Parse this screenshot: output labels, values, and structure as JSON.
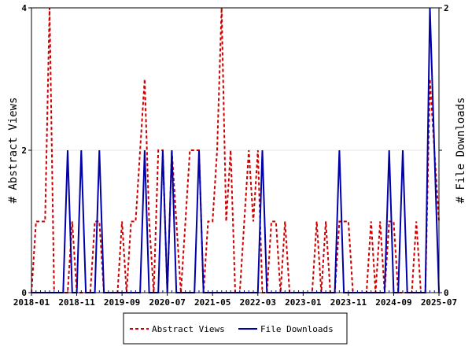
{
  "chart_data": {
    "type": "line",
    "ylabel_left": "# Abstract Views",
    "ylabel_right": "# File Downloads",
    "x_tick_labels": [
      "2018-01",
      "2018-11",
      "2019-09",
      "2020-07",
      "2021-05",
      "2022-03",
      "2023-01",
      "2023-11",
      "2024-09",
      "2025-07"
    ],
    "x_range": [
      "2018-01",
      "2025-07"
    ],
    "ylim_left": [
      0,
      4
    ],
    "yticks_left": [
      0,
      2,
      4
    ],
    "ylim_right": [
      0,
      2
    ],
    "yticks_right": [
      0,
      1,
      2
    ],
    "legend_position": "bottom-center",
    "series": [
      {
        "name": "Abstract Views",
        "color": "#cc0000",
        "style": "dashed",
        "axis": "left",
        "points": [
          [
            "2018-01",
            0
          ],
          [
            "2018-02",
            1
          ],
          [
            "2018-03",
            1
          ],
          [
            "2018-04",
            1
          ],
          [
            "2018-05",
            4
          ],
          [
            "2018-06",
            0
          ],
          [
            "2018-07",
            0
          ],
          [
            "2018-08",
            0
          ],
          [
            "2018-09",
            0
          ],
          [
            "2018-10",
            1
          ],
          [
            "2018-11",
            0
          ],
          [
            "2018-12",
            0
          ],
          [
            "2019-01",
            0
          ],
          [
            "2019-02",
            0
          ],
          [
            "2019-03",
            1
          ],
          [
            "2019-04",
            1
          ],
          [
            "2019-05",
            0
          ],
          [
            "2019-06",
            0
          ],
          [
            "2019-07",
            0
          ],
          [
            "2019-08",
            0
          ],
          [
            "2019-09",
            1
          ],
          [
            "2019-10",
            0
          ],
          [
            "2019-11",
            1
          ],
          [
            "2019-12",
            1
          ],
          [
            "2020-01",
            2
          ],
          [
            "2020-02",
            3
          ],
          [
            "2020-03",
            1
          ],
          [
            "2020-04",
            0
          ],
          [
            "2020-05",
            2
          ],
          [
            "2020-06",
            2
          ],
          [
            "2020-07",
            0
          ],
          [
            "2020-08",
            2
          ],
          [
            "2020-09",
            1
          ],
          [
            "2020-10",
            0
          ],
          [
            "2020-11",
            1
          ],
          [
            "2020-12",
            2
          ],
          [
            "2021-01",
            2
          ],
          [
            "2021-02",
            2
          ],
          [
            "2021-03",
            0
          ],
          [
            "2021-04",
            1
          ],
          [
            "2021-05",
            1
          ],
          [
            "2021-06",
            2
          ],
          [
            "2021-07",
            4
          ],
          [
            "2021-08",
            1
          ],
          [
            "2021-09",
            2
          ],
          [
            "2021-10",
            0
          ],
          [
            "2021-11",
            0
          ],
          [
            "2021-12",
            1
          ],
          [
            "2022-01",
            2
          ],
          [
            "2022-02",
            1
          ],
          [
            "2022-03",
            2
          ],
          [
            "2022-04",
            0
          ],
          [
            "2022-05",
            0
          ],
          [
            "2022-06",
            1
          ],
          [
            "2022-07",
            1
          ],
          [
            "2022-08",
            0
          ],
          [
            "2022-09",
            1
          ],
          [
            "2022-10",
            0
          ],
          [
            "2022-11",
            0
          ],
          [
            "2022-12",
            0
          ],
          [
            "2023-01",
            0
          ],
          [
            "2023-02",
            0
          ],
          [
            "2023-03",
            0
          ],
          [
            "2023-04",
            1
          ],
          [
            "2023-05",
            0
          ],
          [
            "2023-06",
            1
          ],
          [
            "2023-07",
            0
          ],
          [
            "2023-08",
            0
          ],
          [
            "2023-09",
            1
          ],
          [
            "2023-10",
            1
          ],
          [
            "2023-11",
            1
          ],
          [
            "2023-12",
            0
          ],
          [
            "2024-01",
            0
          ],
          [
            "2024-02",
            0
          ],
          [
            "2024-03",
            0
          ],
          [
            "2024-04",
            1
          ],
          [
            "2024-05",
            0
          ],
          [
            "2024-06",
            1
          ],
          [
            "2024-07",
            0
          ],
          [
            "2024-08",
            1
          ],
          [
            "2024-09",
            1
          ],
          [
            "2024-10",
            0
          ],
          [
            "2024-11",
            0
          ],
          [
            "2024-12",
            0
          ],
          [
            "2025-01",
            0
          ],
          [
            "2025-02",
            1
          ],
          [
            "2025-03",
            0
          ],
          [
            "2025-04",
            0
          ],
          [
            "2025-05",
            3
          ],
          [
            "2025-06",
            2
          ],
          [
            "2025-07",
            1
          ]
        ]
      },
      {
        "name": "File Downloads",
        "color": "#0000aa",
        "style": "solid",
        "axis": "right",
        "points": [
          [
            "2018-01",
            0
          ],
          [
            "2018-02",
            0
          ],
          [
            "2018-03",
            0
          ],
          [
            "2018-04",
            0
          ],
          [
            "2018-05",
            0
          ],
          [
            "2018-06",
            0
          ],
          [
            "2018-07",
            0
          ],
          [
            "2018-08",
            0
          ],
          [
            "2018-09",
            1
          ],
          [
            "2018-10",
            0
          ],
          [
            "2018-11",
            0
          ],
          [
            "2018-12",
            1
          ],
          [
            "2019-01",
            0
          ],
          [
            "2019-02",
            0
          ],
          [
            "2019-03",
            0
          ],
          [
            "2019-04",
            1
          ],
          [
            "2019-05",
            0
          ],
          [
            "2019-06",
            0
          ],
          [
            "2019-07",
            0
          ],
          [
            "2019-08",
            0
          ],
          [
            "2019-09",
            0
          ],
          [
            "2019-10",
            0
          ],
          [
            "2019-11",
            0
          ],
          [
            "2019-12",
            0
          ],
          [
            "2020-01",
            0
          ],
          [
            "2020-02",
            1
          ],
          [
            "2020-03",
            0
          ],
          [
            "2020-04",
            0
          ],
          [
            "2020-05",
            0
          ],
          [
            "2020-06",
            1
          ],
          [
            "2020-07",
            0
          ],
          [
            "2020-08",
            1
          ],
          [
            "2020-09",
            0
          ],
          [
            "2020-10",
            0
          ],
          [
            "2020-11",
            0
          ],
          [
            "2020-12",
            0
          ],
          [
            "2021-01",
            0
          ],
          [
            "2021-02",
            1
          ],
          [
            "2021-03",
            0
          ],
          [
            "2021-04",
            0
          ],
          [
            "2021-05",
            0
          ],
          [
            "2021-06",
            0
          ],
          [
            "2021-07",
            0
          ],
          [
            "2021-08",
            0
          ],
          [
            "2021-09",
            0
          ],
          [
            "2021-10",
            0
          ],
          [
            "2021-11",
            0
          ],
          [
            "2021-12",
            0
          ],
          [
            "2022-01",
            0
          ],
          [
            "2022-02",
            0
          ],
          [
            "2022-03",
            0
          ],
          [
            "2022-04",
            1
          ],
          [
            "2022-05",
            0
          ],
          [
            "2022-06",
            0
          ],
          [
            "2022-07",
            0
          ],
          [
            "2022-08",
            0
          ],
          [
            "2022-09",
            0
          ],
          [
            "2022-10",
            0
          ],
          [
            "2022-11",
            0
          ],
          [
            "2022-12",
            0
          ],
          [
            "2023-01",
            0
          ],
          [
            "2023-02",
            0
          ],
          [
            "2023-03",
            0
          ],
          [
            "2023-04",
            0
          ],
          [
            "2023-05",
            0
          ],
          [
            "2023-06",
            0
          ],
          [
            "2023-07",
            0
          ],
          [
            "2023-08",
            0
          ],
          [
            "2023-09",
            1
          ],
          [
            "2023-10",
            0
          ],
          [
            "2023-11",
            0
          ],
          [
            "2023-12",
            0
          ],
          [
            "2024-01",
            0
          ],
          [
            "2024-02",
            0
          ],
          [
            "2024-03",
            0
          ],
          [
            "2024-04",
            0
          ],
          [
            "2024-05",
            0
          ],
          [
            "2024-06",
            0
          ],
          [
            "2024-07",
            0
          ],
          [
            "2024-08",
            1
          ],
          [
            "2024-09",
            0
          ],
          [
            "2024-10",
            0
          ],
          [
            "2024-11",
            1
          ],
          [
            "2024-12",
            0
          ],
          [
            "2025-01",
            0
          ],
          [
            "2025-02",
            0
          ],
          [
            "2025-03",
            0
          ],
          [
            "2025-04",
            0
          ],
          [
            "2025-05",
            2
          ],
          [
            "2025-06",
            1
          ],
          [
            "2025-07",
            0
          ]
        ]
      }
    ]
  }
}
